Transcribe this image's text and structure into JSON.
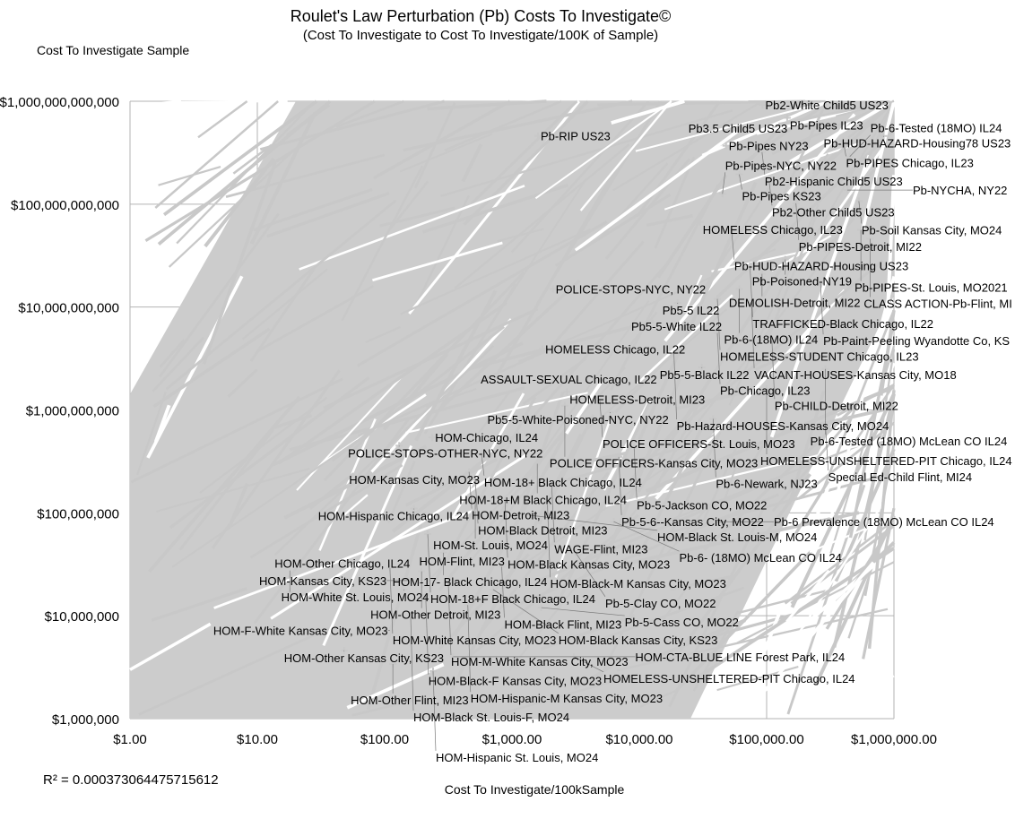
{
  "chart_data": {
    "type": "scatter",
    "title": "Roulet's Law Perturbation (Pb) Costs To Investigate©",
    "subtitle": "(Cost To Investigate to Cost To Investigate/100K of Sample)",
    "xlabel": "Cost To Investigate/100kSample",
    "ylabel": "Cost To Investigate Sample",
    "x_scale": "log",
    "y_scale": "log",
    "xlim": [
      1,
      1000000
    ],
    "ylim": [
      1000000,
      1000000000000
    ],
    "grid": true,
    "series_color": "#c8c8c8",
    "x_ticks": [
      1,
      10,
      100,
      1000,
      10000,
      100000,
      1000000
    ],
    "x_tick_labels": [
      "$1.00",
      "$10.00",
      "$100.00",
      "$1,000.00",
      "$10,000.00",
      "$100,000.00",
      "$1,000,000.00"
    ],
    "y_ticks": [
      1000000,
      10000000,
      100000000,
      1000000000,
      10000000000,
      100000000000,
      1000000000000
    ],
    "y_tick_labels": [
      "$1,000,000",
      "$10,000,000",
      "$100,000,000",
      "$1,000,000,000",
      "$10,000,000,000",
      "$100,000,000,000",
      "$1,000,000,000,000"
    ],
    "annotation": "R² = 0.000373064475715612",
    "points": [
      {
        "label": "Pb2-White Child5 US23",
        "x": 93000,
        "y": 920000000000
      },
      {
        "label": "Pb-Pipes IL23",
        "x": 145000,
        "y": 690000000000
      },
      {
        "label": "Pb3.5 Child5 US23",
        "x": 32000,
        "y": 550000000000
      },
      {
        "label": "Pb-RIP US23",
        "x": 1600,
        "y": 460000000000
      },
      {
        "label": "Pb-HUD-HAZARD-Housing78 US23",
        "x": 830000,
        "y": 460000000000
      },
      {
        "label": "Pb-PIPES Chicago, IL23",
        "x": 400000,
        "y": 410000000000
      },
      {
        "label": "Pb-Pipes NY23",
        "x": 48000,
        "y": 370000000000
      },
      {
        "label": "Pb2-Hispanic Child5 US23",
        "x": 92000,
        "y": 320000000000
      },
      {
        "label": "Pb-6-Tested (18MO) IL24",
        "x": 450000,
        "y": 290000000000
      },
      {
        "label": "Pb-Pipes KS23",
        "x": 61000,
        "y": 195000000000
      },
      {
        "label": "Pb2-Other Child5 US23",
        "x": 105000,
        "y": 160000000000
      },
      {
        "label": "Pb-NYCHA, NY22",
        "x": 430000,
        "y": 137000000000
      },
      {
        "label": "Pb-Pipes-NYC, NY22",
        "x": 45000,
        "y": 126000000000
      },
      {
        "label": "Pb-Soil Kansas City, MO24",
        "x": 530000,
        "y": 107000000000
      },
      {
        "label": "Pb-PIPES-Detroit, MI22",
        "x": 170000,
        "y": 102000000000
      },
      {
        "label": "HOMELESS Chicago, IL23",
        "x": 30000,
        "y": 67000000000
      },
      {
        "label": "Pb-HUD-HAZARD-Housing US23",
        "x": 53000,
        "y": 56000000000
      },
      {
        "label": "Pb-PIPES-St. Louis, MO2021",
        "x": 550000,
        "y": 56000000000
      },
      {
        "label": "CLASS ACTION-Pb-Flint, MI",
        "x": 650000,
        "y": 46000000000
      },
      {
        "label": "Pb-Poisoned-NY19",
        "x": 140000,
        "y": 29000000000
      },
      {
        "label": "TRAFFICKED-Black Chicago, IL22",
        "x": 74000,
        "y": 25000000000
      },
      {
        "label": "DEMOLISH-Detroit, MI22",
        "x": 92000,
        "y": 21000000000
      },
      {
        "label": "Pb-Paint-Peeling Wyandotte Co, KS",
        "x": 265000,
        "y": 17000000000
      },
      {
        "label": "POLICE-STOPS-NYC, NY22",
        "x": 2100,
        "y": 15000000000
      },
      {
        "label": "Pb-6-(18MO) IL24",
        "x": 61000,
        "y": 15000000000
      },
      {
        "label": "HOMELESS-STUDENT Chicago, IL23",
        "x": 41000,
        "y": 12000000000
      },
      {
        "label": "Pb5-5 IL22",
        "x": 20000,
        "y": 11000000000
      },
      {
        "label": "VACANT-HOUSES-Kansas City, MO18",
        "x": 76000,
        "y": 11000000000
      },
      {
        "label": "Pb5-5-White IL22",
        "x": 18500,
        "y": 6500000000
      },
      {
        "label": "Pb-Chicago, IL23",
        "x": 41000,
        "y": 5600000000
      },
      {
        "label": "Pb-CHILD-Detroit, MI22",
        "x": 110000,
        "y": 4700000000
      },
      {
        "label": "HOMELESS Chicago, IL22",
        "x": 1740,
        "y": 3900000000
      },
      {
        "label": "Pb-Hazard-HOUSES-Kansas City, MO24",
        "x": 18700,
        "y": 3500000000
      },
      {
        "label": "Pb5-5-Black IL22",
        "x": 31000,
        "y": 2600000000
      },
      {
        "label": "Pb-6-Tested (18MO) McLean CO IL24",
        "x": 290000,
        "y": 2500000000
      },
      {
        "label": "ASSAULT-SEXUAL Chicago, IL22",
        "x": 880,
        "y": 2000000000
      },
      {
        "label": "HOMELESS-UNSHELTERED-PIT Chicago, IL24",
        "x": 100000,
        "y": 1600000000
      },
      {
        "label": "HOMELESS-Detroit, MI23",
        "x": 2700,
        "y": 1500000000
      },
      {
        "label": "POLICE OFFICERS-St. Louis, MO23",
        "x": 4900,
        "y": 1230000000
      },
      {
        "label": "POLICE OFFICERS-Kansas City, MO23",
        "x": 2600,
        "y": 1100000000
      },
      {
        "label": "Pb5-5-White-Poisoned-NYC, NY22",
        "x": 5900,
        "y": 950000000
      },
      {
        "label": "Pb-6-Newark, NJ23",
        "x": 38000,
        "y": 820000000
      },
      {
        "label": "Special Ed-Child Flint, MI24",
        "x": 290000,
        "y": 690000000
      },
      {
        "label": "HOM-Chicago, IL24",
        "x": 237,
        "y": 540000000
      },
      {
        "label": "POLICE-STOPS-OTHER-NYC, NY22",
        "x": 130,
        "y": 450000000
      },
      {
        "label": "Pb-5-Jackson CO, MO22",
        "x": 9100,
        "y": 430000000
      },
      {
        "label": "HOM-18+ Black Chicago, IL24",
        "x": 575,
        "y": 380000000
      },
      {
        "label": "Pb-5-6--Kansas City, MO22",
        "x": 6900,
        "y": 350000000
      },
      {
        "label": "HOM-18+M Black Chicago, IL24",
        "x": 1580,
        "y": 300000000
      },
      {
        "label": "HOM-Detroit, MI23",
        "x": 460,
        "y": 250000000
      },
      {
        "label": "HOM-Black Detroit, MI23",
        "x": 515,
        "y": 210000000
      },
      {
        "label": "WAGE-Flint, MI23",
        "x": 2050,
        "y": 190000000
      },
      {
        "label": "HOM-Kansas City, MO23",
        "x": 350,
        "y": 180000000
      },
      {
        "label": "HOM-Black Kansas City, MO23",
        "x": 880,
        "y": 135000000
      },
      {
        "label": "HOM-St. Louis, MO24",
        "x": 515,
        "y": 128000000
      },
      {
        "label": "HOM-Black-M Kansas City, MO23",
        "x": 1900,
        "y": 120000000
      },
      {
        "label": "HOM-Hispanic Chicago, IL24",
        "x": 170,
        "y": 110000000
      },
      {
        "label": "HOM-Black St. Louis-M, MO24",
        "x": 1360,
        "y": 95000000
      },
      {
        "label": "Pb-6- (18MO) McLean CO IL24",
        "x": 6300,
        "y": 82000000
      },
      {
        "label": "Pb-6 Prevalence (18MO) McLean CO IL24",
        "x": 41000,
        "y": 82000000
      },
      {
        "label": "HOM-18+F Black Chicago, IL24",
        "x": 218,
        "y": 62000000
      },
      {
        "label": "HOM-17- Black Chicago, IL24",
        "x": 290,
        "y": 41000000
      },
      {
        "label": "Pb-5-Clay CO, MO22",
        "x": 3160,
        "y": 41000000
      },
      {
        "label": "HOM-Flint, MI23",
        "x": 400,
        "y": 34000000
      },
      {
        "label": "HOM-Black Flint, MI23",
        "x": 830,
        "y": 30000000
      },
      {
        "label": "HOM-White Kansas City, MO23",
        "x": 110,
        "y": 29000000
      },
      {
        "label": "HOM-Other Detroit, MI23",
        "x": 195,
        "y": 27000000
      },
      {
        "label": "HOM-Kansas City, KS23",
        "x": 155,
        "y": 22000000
      },
      {
        "label": "HOM-M-White Kansas City, MO23",
        "x": 316,
        "y": 21000000
      },
      {
        "label": "HOM-White St. Louis, MO24",
        "x": 142,
        "y": 18000000
      },
      {
        "label": "HOM-Black Kansas City, KS23",
        "x": 710,
        "y": 18000000
      },
      {
        "label": "HOM-Other Chicago, IL24",
        "x": 18,
        "y": 17000000
      },
      {
        "label": "HOM-Black-F Kansas City, MO23",
        "x": 210,
        "y": 16000000
      },
      {
        "label": "HOM-Hispanic-M Kansas City, MO23",
        "x": 450,
        "y": 12700000
      },
      {
        "label": "Pb-5-Cass CO, MO22",
        "x": 1700,
        "y": 12000000
      },
      {
        "label": "HOM-Black St. Louis-F, MO24",
        "x": 160,
        "y": 9800000
      },
      {
        "label": "HOM-F-White Kansas City, MO23",
        "x": 110,
        "y": 7200000
      },
      {
        "label": "HOM-Other Kansas City, KS23",
        "x": 48,
        "y": 4600000
      },
      {
        "label": "HOM-CTA-BLUE LINE Forest Park, IL24",
        "x": 345,
        "y": 4000000
      },
      {
        "label": "HOMELESS-UNSHELTERED-PIT Chicago, IL24",
        "x": 3060,
        "y": 4000000
      },
      {
        "label": "HOM-Other Flint, MI23",
        "x": 116,
        "y": 3400000
      },
      {
        "label": "HOM-Hispanic St. Louis, MO24",
        "x": 240,
        "y": 2900000
      }
    ]
  }
}
